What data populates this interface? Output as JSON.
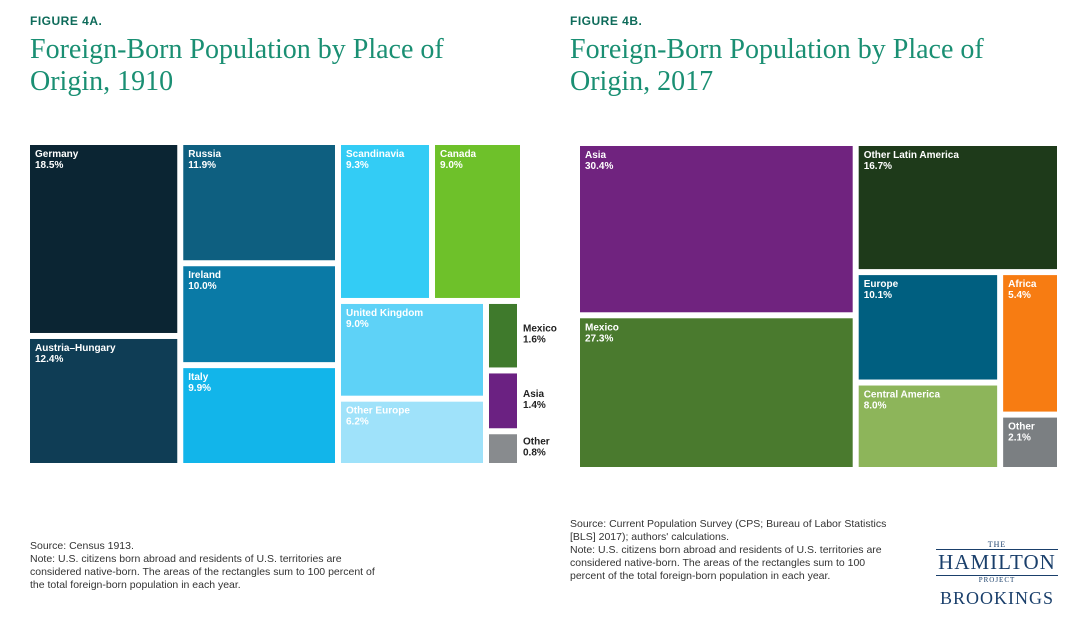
{
  "chart_data": [
    {
      "type": "treemap",
      "figure": "FIGURE 4A.",
      "title": "Foreign-Born Population by Place of Origin, 1910",
      "categories": [
        "Germany",
        "Austria–Hungary",
        "Russia",
        "Ireland",
        "Italy",
        "Scandinavia",
        "Canada",
        "United Kingdom",
        "Other Europe",
        "Mexico",
        "Asia",
        "Other"
      ],
      "values": [
        18.5,
        12.4,
        11.9,
        10.0,
        9.9,
        9.3,
        9.0,
        9.0,
        6.2,
        1.6,
        1.4,
        0.8
      ],
      "value_labels": [
        "18.5%",
        "12.4%",
        "11.9%",
        "10.0%",
        "9.9%",
        "9.3%",
        "9.0%",
        "9.0%",
        "6.2%",
        "1.6%",
        "1.4%",
        "0.8%"
      ],
      "colors": [
        "#0b2533",
        "#0f3d55",
        "#0e5f80",
        "#0a7aa6",
        "#12b5ea",
        "#33ccf5",
        "#6ec12a",
        "#5ed2f7",
        "#9fe2fa",
        "#3f7a2c",
        "#6b2182",
        "#888b8e"
      ],
      "source": "Source: Census 1913.",
      "note": "Note: U.S. citizens born abroad and residents of U.S. territories are considered native-born. The areas of the rectangles sum to 100 percent of the total foreign-born population in each year."
    },
    {
      "type": "treemap",
      "figure": "FIGURE 4B.",
      "title": "Foreign-Born Population by Place of Origin, 2017",
      "categories": [
        "Asia",
        "Mexico",
        "Other Latin America",
        "Europe",
        "Central America",
        "Africa",
        "Other"
      ],
      "values": [
        30.4,
        27.3,
        16.7,
        10.1,
        8.0,
        5.4,
        2.1
      ],
      "value_labels": [
        "30.4%",
        "27.3%",
        "16.7%",
        "10.1%",
        "8.0%",
        "5.4%",
        "2.1%"
      ],
      "colors": [
        "#70237f",
        "#4a7a2e",
        "#1e3a1a",
        "#005f80",
        "#8db55a",
        "#f77c12",
        "#7b7f82"
      ],
      "source": "Source: Current Population Survey (CPS; Bureau of Labor Statistics [BLS] 2017); authors' calculations.",
      "note": "Note: U.S. citizens born abroad and residents of U.S. territories are considered native-born. The areas of the rectangles sum to 100 percent of the total foreign-born population in each year."
    }
  ],
  "logo": {
    "the": "THE",
    "name": "HAMILTON",
    "project": "PROJECT",
    "org": "BROOKINGS"
  }
}
